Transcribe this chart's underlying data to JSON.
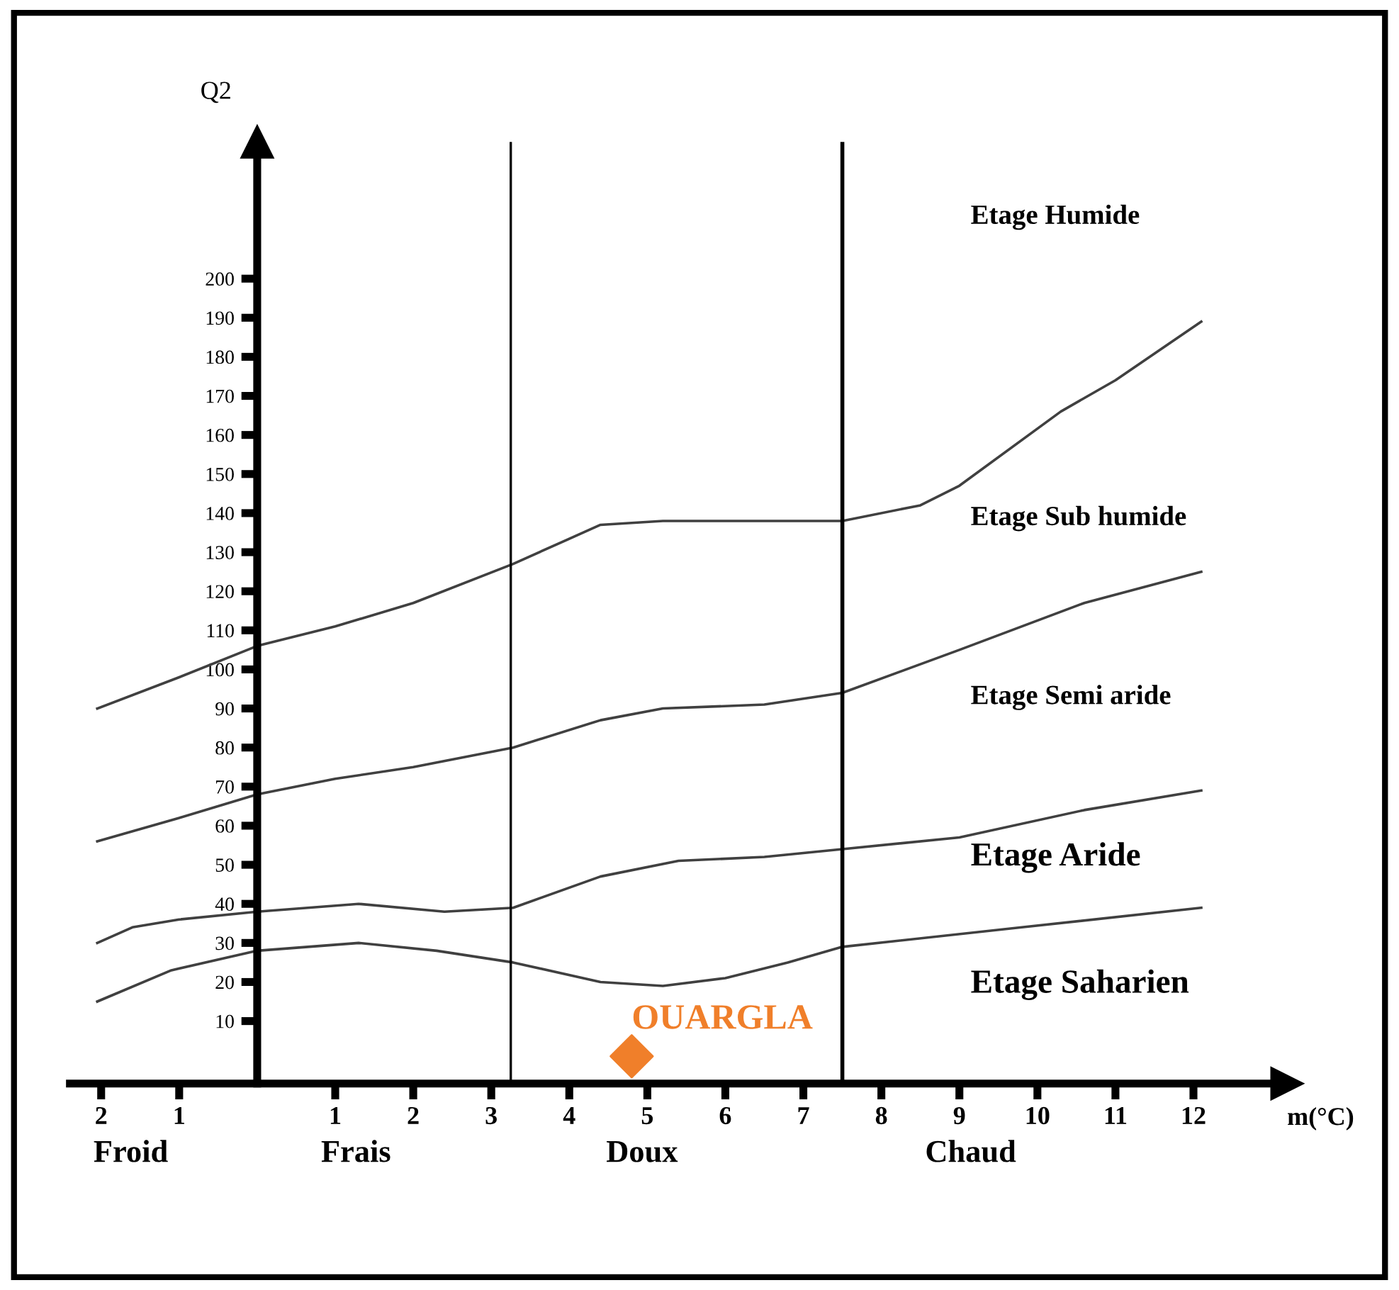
{
  "chart_data": {
    "type": "line",
    "xlabel": "m(°C)",
    "ylabel": "Q2",
    "xlim": [
      -2.4,
      13.2
    ],
    "ylim": [
      -6,
      235
    ],
    "xticks": [
      {
        "value": -2,
        "label": "2"
      },
      {
        "value": -1,
        "label": "1"
      },
      1,
      2,
      3,
      4,
      5,
      6,
      7,
      8,
      9,
      10,
      11,
      12
    ],
    "yticks": [
      10,
      20,
      30,
      40,
      50,
      60,
      70,
      80,
      90,
      100,
      110,
      120,
      130,
      140,
      150,
      160,
      170,
      180,
      190,
      200
    ],
    "grid": false,
    "legend": false,
    "line_style": "solid",
    "series": [
      {
        "color": "#404040",
        "x": [
          -2.05,
          -1,
          0,
          1,
          2,
          3.28,
          4.4,
          5.2,
          6.5,
          7.5,
          8.5,
          9.0,
          10.3,
          11,
          12.1
        ],
        "values": [
          90,
          98,
          106,
          111,
          117,
          127,
          137,
          138,
          138,
          138,
          142,
          147,
          166,
          174,
          189
        ]
      },
      {
        "color": "#404040",
        "x": [
          -2.05,
          -1,
          0,
          1,
          2,
          3.28,
          4.4,
          5.2,
          6.5,
          7.5,
          9,
          10.6,
          12.1
        ],
        "values": [
          56,
          62,
          68,
          72,
          75,
          80,
          87,
          90,
          91,
          94,
          105,
          117,
          125
        ]
      },
      {
        "color": "#404040",
        "x": [
          -2.05,
          -1.6,
          -1,
          0,
          1.3,
          2.4,
          3.28,
          4.4,
          5.4,
          6.5,
          7.5,
          9,
          10.6,
          12.1
        ],
        "values": [
          30,
          34,
          36,
          38,
          40,
          38,
          39,
          47,
          51,
          52,
          54,
          57,
          64,
          69
        ]
      },
      {
        "color": "#404040",
        "x": [
          -2.05,
          -1.1,
          0,
          1.3,
          2.3,
          3.28,
          4.4,
          5.2,
          6,
          6.8,
          7.5,
          9.8,
          12.1
        ],
        "values": [
          15,
          23,
          28,
          30,
          28,
          25,
          20,
          19,
          21,
          25,
          29,
          34,
          39
        ]
      },
      {
        "type": "scatter",
        "name": "OUARGLA",
        "color": "#f07f2a",
        "marker": "diamond",
        "x": [
          4.8
        ],
        "values": [
          1
        ]
      }
    ],
    "ref_lines": [
      {
        "axis": "x",
        "value": 3.25,
        "color": "#000000"
      },
      {
        "axis": "x",
        "value": 7.5,
        "color": "#000000"
      }
    ],
    "annotations": [
      "Etage Humide",
      "Etage Sub humide",
      "Etage Semi aride",
      "Etage Aride",
      "Etage Saharien",
      "Froid",
      "Frais",
      "Doux",
      "Chaud"
    ]
  }
}
